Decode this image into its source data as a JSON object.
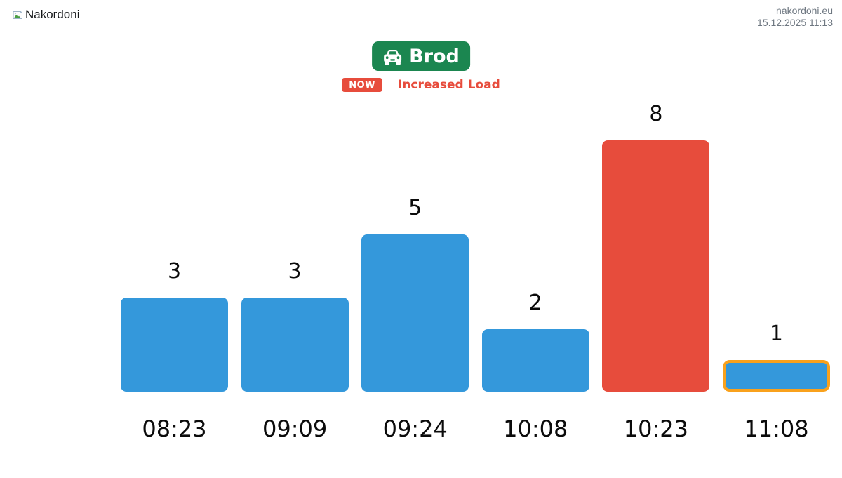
{
  "header": {
    "logo_alt": "Nakordoni",
    "site": "nakordoni.eu",
    "timestamp": "15.12.2025 11:13"
  },
  "station": {
    "name": "Brod",
    "icon": "car-icon",
    "button_color": "#1b8650"
  },
  "status": {
    "badge": "NOW",
    "message": "Increased Load",
    "color": "#e74c3c"
  },
  "chart_data": {
    "type": "bar",
    "title": "",
    "xlabel": "",
    "ylabel": "",
    "categories": [
      "08:23",
      "09:09",
      "09:24",
      "10:08",
      "10:23",
      "11:08"
    ],
    "values": [
      3,
      3,
      5,
      2,
      8,
      1
    ],
    "bar_colors": [
      "#3498db",
      "#3498db",
      "#3498db",
      "#3498db",
      "#e74c3c",
      "#3498db"
    ],
    "default_bar_color": "#3498db",
    "alert_bar_color": "#e74c3c",
    "highlighted_index": 5,
    "highlight_border_color": "#f9a11c",
    "value_labels_shown": true,
    "ylim": [
      0,
      8
    ],
    "grid": false,
    "legend": false
  }
}
